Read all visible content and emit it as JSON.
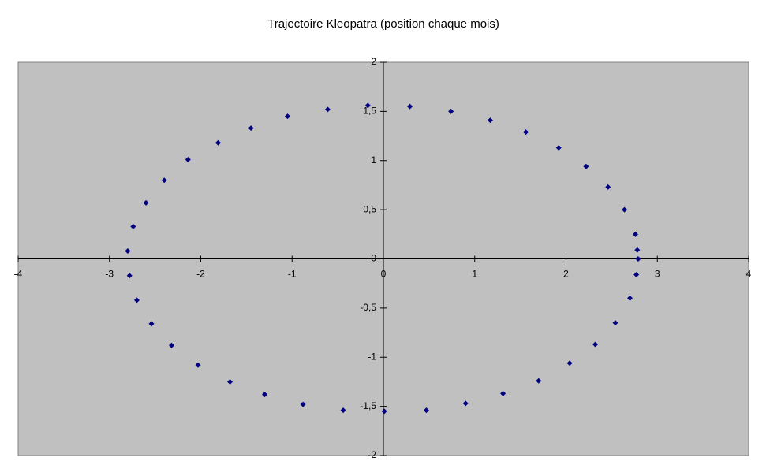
{
  "chart_data": {
    "type": "scatter",
    "title": "Trajectoire Kleopatra (position chaque mois)",
    "color": "#000080",
    "plot_background": "#c0c0c0",
    "xlim": [
      -4,
      4
    ],
    "xticks": [
      -4,
      -3,
      -2,
      -1,
      0,
      1,
      2,
      3,
      4
    ],
    "ylim": [
      -2,
      2
    ],
    "yticks": [
      -2,
      {
        "value": -1.5,
        "label": "-1,5"
      },
      -1,
      {
        "value": -0.5,
        "label": "-0,5"
      },
      0,
      {
        "value": 0.5,
        "label": "0,5"
      },
      1,
      {
        "value": 1.5,
        "label": "1,5"
      },
      2
    ],
    "x": [
      -0.17,
      0.29,
      0.74,
      1.17,
      1.56,
      1.92,
      2.22,
      2.46,
      2.64,
      2.76,
      2.78,
      2.79,
      2.77,
      2.7,
      2.54,
      2.32,
      2.04,
      1.7,
      1.31,
      0.9,
      0.47,
      0.01,
      -0.44,
      -0.88,
      -1.3,
      -1.68,
      -2.03,
      -2.32,
      -2.54,
      -2.7,
      -2.78,
      -2.8,
      -2.74,
      -2.6,
      -2.4,
      -2.14,
      -1.81,
      -1.45,
      -1.05,
      -0.61
    ],
    "values": [
      1.56,
      1.55,
      1.5,
      1.41,
      1.29,
      1.13,
      0.94,
      0.73,
      0.5,
      0.25,
      0.09,
      0.0,
      -0.16,
      -0.4,
      -0.65,
      -0.87,
      -1.06,
      -1.24,
      -1.37,
      -1.47,
      -1.54,
      -1.55,
      -1.54,
      -1.48,
      -1.38,
      -1.25,
      -1.08,
      -0.88,
      -0.66,
      -0.42,
      -0.17,
      0.08,
      0.33,
      0.57,
      0.8,
      1.01,
      1.18,
      1.33,
      1.45,
      1.52
    ]
  }
}
